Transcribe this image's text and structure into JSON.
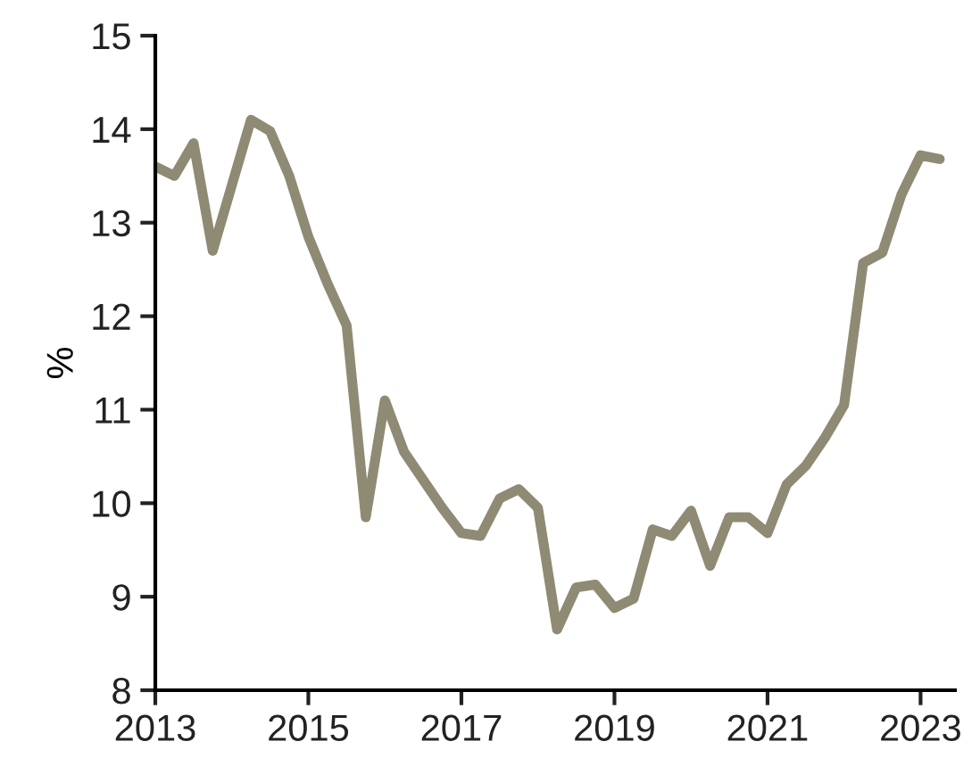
{
  "chart_data": {
    "type": "line",
    "ylabel": "%",
    "x": [
      2013.0,
      2013.25,
      2013.5,
      2013.75,
      2014.0,
      2014.25,
      2014.5,
      2014.75,
      2015.0,
      2015.25,
      2015.5,
      2015.75,
      2016.0,
      2016.25,
      2016.5,
      2016.75,
      2017.0,
      2017.25,
      2017.5,
      2017.75,
      2018.0,
      2018.25,
      2018.5,
      2018.75,
      2019.0,
      2019.25,
      2019.5,
      2019.75,
      2020.0,
      2020.25,
      2020.5,
      2020.75,
      2021.0,
      2021.25,
      2021.5,
      2021.75,
      2022.0,
      2022.25,
      2022.5,
      2022.75,
      2023.0,
      2023.25
    ],
    "series": [
      {
        "color": "#8f8a73",
        "values": [
          13.6,
          13.5,
          13.85,
          12.7,
          13.4,
          14.1,
          13.98,
          13.5,
          12.85,
          12.35,
          11.9,
          9.85,
          11.1,
          10.55,
          10.25,
          9.95,
          9.68,
          9.65,
          10.05,
          10.15,
          9.95,
          8.65,
          9.1,
          9.13,
          8.88,
          8.98,
          9.72,
          9.65,
          9.92,
          9.33,
          9.85,
          9.85,
          9.68,
          10.2,
          10.4,
          10.7,
          11.05,
          12.57,
          12.68,
          13.3,
          13.72,
          13.68
        ]
      }
    ],
    "xlim": [
      2013,
      2023.45
    ],
    "xticks": [
      2013,
      2015,
      2017,
      2019,
      2021,
      2023
    ],
    "ylim": [
      8,
      15
    ],
    "yticks": [
      8,
      9,
      10,
      11,
      12,
      13,
      14,
      15
    ],
    "grid": false,
    "legend": false,
    "marker": "none",
    "line_style": "solid"
  }
}
